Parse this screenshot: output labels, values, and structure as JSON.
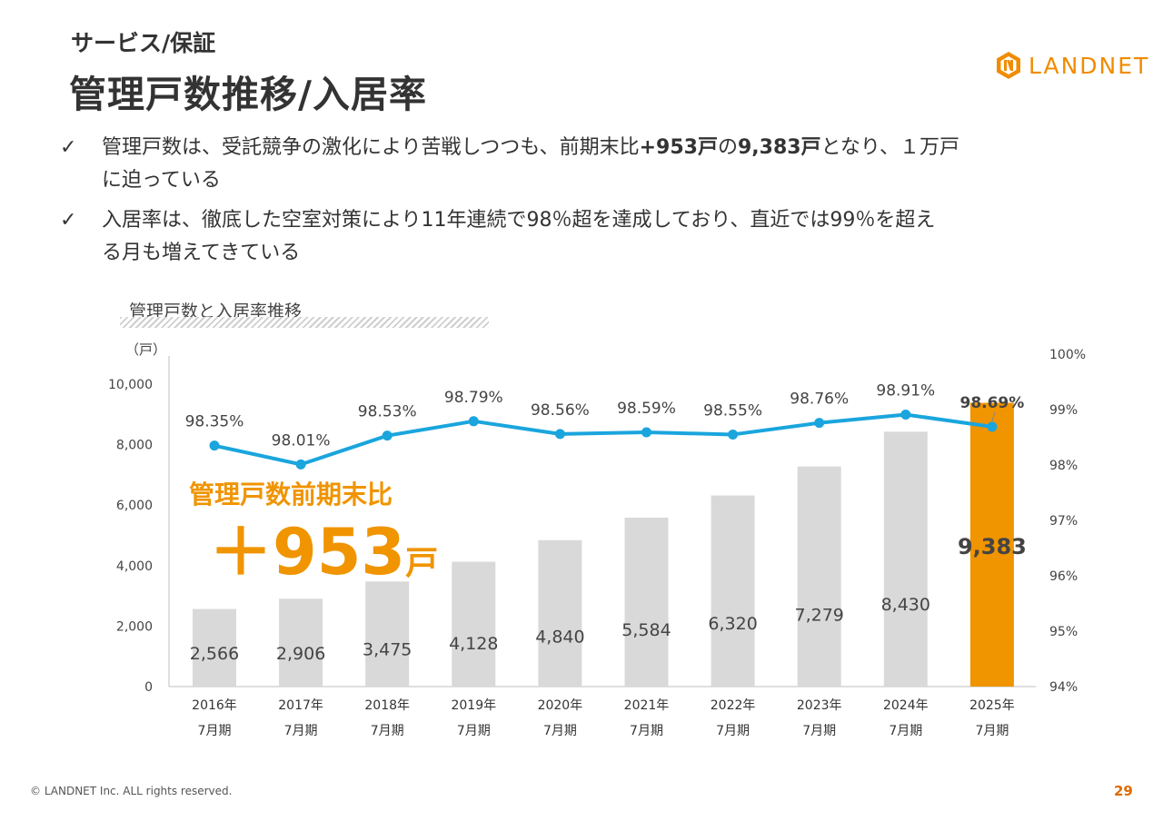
{
  "header": {
    "subtitle": "サービス/保証",
    "title": "管理戸数推移/入居率",
    "logo_text": "LANDNET"
  },
  "bullets": {
    "check_mark": "✓",
    "b1_part1": "管理戸数は、受託競争の激化により苦戦しつつも、前期末比",
    "b1_bold1": "+953戸",
    "b1_part2": "の",
    "b1_bold2": "9,383戸",
    "b1_part3": "となり、１万戸",
    "b1_line2": "に迫っている",
    "b2_line1": "入居率は、徹底した空室対策により11年連続で98％超を達成しており、直近では99％を超え",
    "b2_line2": "る月も増えてきている"
  },
  "chart_caption": "管理戸数と入居率推移",
  "footer": {
    "copyright": "© LANDNET Inc. ALL rights reserved.",
    "page_number": "29"
  },
  "colors": {
    "bar": "#d9d9d9",
    "bar_highlight": "#f09400",
    "line": "#1aa5dd",
    "accent_orange": "#f09400"
  },
  "chart_data": {
    "type": "bar",
    "y_unit_label": "（戸）",
    "categories": [
      [
        "2016年",
        "7月期"
      ],
      [
        "2017年",
        "7月期"
      ],
      [
        "2018年",
        "7月期"
      ],
      [
        "2019年",
        "7月期"
      ],
      [
        "2020年",
        "7月期"
      ],
      [
        "2021年",
        "7月期"
      ],
      [
        "2022年",
        "7月期"
      ],
      [
        "2023年",
        "7月期"
      ],
      [
        "2024年",
        "7月期"
      ],
      [
        "2025年",
        "7月期"
      ]
    ],
    "series": [
      {
        "type": "bar",
        "axis": "left",
        "values": [
          2566,
          2906,
          3475,
          4128,
          4840,
          5584,
          6320,
          7279,
          8430,
          9383
        ],
        "labels": [
          "2,566",
          "2,906",
          "3,475",
          "4,128",
          "4,840",
          "5,584",
          "6,320",
          "7,279",
          "8,430",
          "9,383"
        ],
        "highlight_index": 9
      },
      {
        "type": "line",
        "axis": "right",
        "values": [
          98.35,
          98.01,
          98.53,
          98.79,
          98.56,
          98.59,
          98.55,
          98.76,
          98.91,
          98.69
        ],
        "labels": [
          "98.35%",
          "98.01%",
          "98.53%",
          "98.79%",
          "98.56%",
          "98.59%",
          "98.55%",
          "98.76%",
          "98.91%",
          "98.69%"
        ]
      }
    ],
    "y_left": {
      "min": 0,
      "max": 10000,
      "ticks": [
        0,
        2000,
        4000,
        6000,
        8000,
        10000
      ],
      "tick_labels": [
        "0",
        "2,000",
        "4,000",
        "6,000",
        "8,000",
        "10,000"
      ]
    },
    "y_right": {
      "min": 94,
      "max": 100,
      "ticks": [
        94,
        95,
        96,
        97,
        98,
        99,
        100
      ],
      "tick_labels": [
        "94%",
        "95%",
        "96%",
        "97%",
        "98%",
        "99%",
        "100%"
      ]
    },
    "annotation": {
      "line1": "管理戸数前期末比",
      "value": "＋953",
      "unit": "戸"
    }
  }
}
